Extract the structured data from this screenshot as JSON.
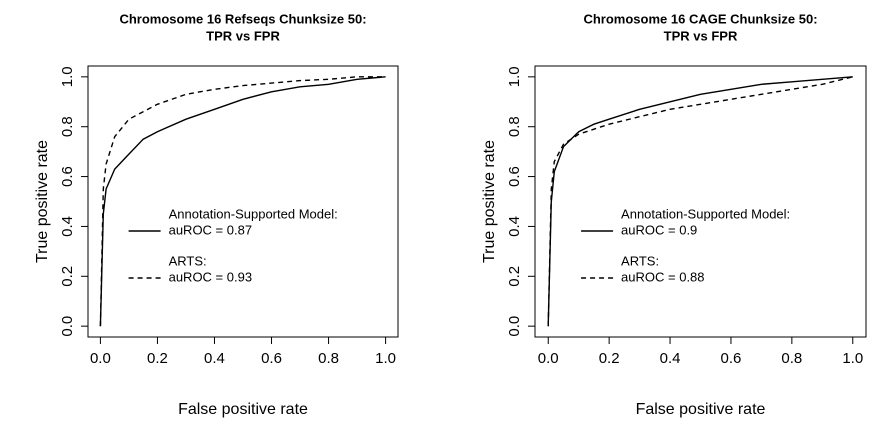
{
  "chart_data": [
    {
      "type": "line",
      "title": [
        "Chromosome 16 Refseqs Chunksize 50:",
        "TPR vs FPR"
      ],
      "x_label": "False positive rate",
      "y_label": "True positive rate",
      "x": [
        0,
        0.01,
        0.02,
        0.05,
        0.1,
        0.15,
        0.2,
        0.3,
        0.4,
        0.5,
        0.6,
        0.7,
        0.8,
        0.9,
        1
      ],
      "series": [
        {
          "name": "Annotation-Supported Model:",
          "label": "auROC = 0.87",
          "color": "#000000",
          "dash": "solid",
          "values": [
            0,
            0.45,
            0.55,
            0.63,
            0.69,
            0.75,
            0.78,
            0.83,
            0.87,
            0.91,
            0.94,
            0.96,
            0.97,
            0.99,
            1
          ]
        },
        {
          "name": "ARTS:",
          "label": "auROC = 0.93",
          "color": "#000000",
          "dash": "dashed",
          "values": [
            0,
            0.55,
            0.65,
            0.76,
            0.83,
            0.86,
            0.89,
            0.93,
            0.95,
            0.965,
            0.975,
            0.985,
            0.99,
            1,
            1
          ]
        }
      ],
      "xlim": [
        0,
        1
      ],
      "ylim": [
        0,
        1
      ],
      "xticks": [
        {
          "value": 0,
          "label": "0.0"
        },
        0.2,
        0.4,
        0.6,
        0.8,
        {
          "value": 1,
          "label": "1.0"
        }
      ],
      "yticks": [
        {
          "value": 0,
          "label": "0.0"
        },
        0.2,
        0.4,
        0.6,
        0.8,
        {
          "value": 1,
          "label": "1.0"
        }
      ],
      "legend": "center right",
      "grid": false
    },
    {
      "type": "line",
      "title": [
        "Chromosome 16 CAGE Chunksize 50:",
        "TPR vs FPR"
      ],
      "x_label": "False positive rate",
      "y_label": "True positive rate",
      "x": [
        0,
        0.01,
        0.02,
        0.05,
        0.1,
        0.15,
        0.2,
        0.3,
        0.4,
        0.5,
        0.6,
        0.7,
        0.8,
        0.9,
        1
      ],
      "series": [
        {
          "name": "Annotation-Supported Model:",
          "label": "auROC = 0.9",
          "color": "#000000",
          "dash": "solid",
          "values": [
            0,
            0.5,
            0.62,
            0.72,
            0.78,
            0.81,
            0.83,
            0.87,
            0.9,
            0.93,
            0.95,
            0.97,
            0.98,
            0.99,
            1
          ]
        },
        {
          "name": "ARTS:",
          "label": "auROC = 0.88",
          "color": "#000000",
          "dash": "dashed",
          "values": [
            0,
            0.55,
            0.66,
            0.73,
            0.77,
            0.79,
            0.81,
            0.84,
            0.87,
            0.89,
            0.91,
            0.93,
            0.95,
            0.97,
            1
          ]
        }
      ],
      "xlim": [
        0,
        1
      ],
      "ylim": [
        0,
        1
      ],
      "xticks": [
        {
          "value": 0,
          "label": "0.0"
        },
        0.2,
        0.4,
        0.6,
        0.8,
        {
          "value": 1,
          "label": "1.0"
        }
      ],
      "yticks": [
        {
          "value": 0,
          "label": "0.0"
        },
        0.2,
        0.4,
        0.6,
        0.8,
        {
          "value": 1,
          "label": "1.0"
        }
      ],
      "legend": "center right",
      "grid": false
    }
  ]
}
